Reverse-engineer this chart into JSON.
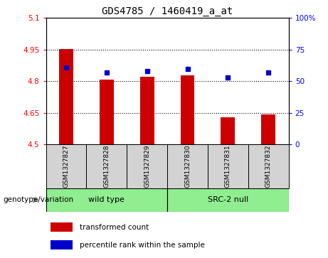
{
  "title": "GDS4785 / 1460419_a_at",
  "samples": [
    "GSM1327827",
    "GSM1327828",
    "GSM1327829",
    "GSM1327830",
    "GSM1327831",
    "GSM1327832"
  ],
  "red_values": [
    4.952,
    4.808,
    4.822,
    4.828,
    4.628,
    4.642
  ],
  "blue_pct": [
    61,
    57,
    58,
    60,
    53,
    57
  ],
  "ylim_left": [
    4.5,
    5.1
  ],
  "ylim_right": [
    0,
    100
  ],
  "yticks_left": [
    4.5,
    4.65,
    4.8,
    4.95,
    5.1
  ],
  "yticks_right": [
    0,
    25,
    50,
    75,
    100
  ],
  "ytick_labels_left": [
    "4.5",
    "4.65",
    "4.8",
    "4.95",
    "5.1"
  ],
  "ytick_labels_right": [
    "0",
    "25",
    "50",
    "75",
    "100%"
  ],
  "hlines": [
    4.65,
    4.8,
    4.95
  ],
  "group_labels": [
    "wild type",
    "SRC-2 null"
  ],
  "group_color": "#90ee90",
  "group_label_prefix": "genotype/variation",
  "bar_color": "#cc0000",
  "dot_color": "#0000cc",
  "bar_width": 0.35,
  "base_value": 4.5,
  "legend_red": "transformed count",
  "legend_blue": "percentile rank within the sample",
  "bg_color": "#d3d3d3",
  "plot_bg": "#ffffff"
}
